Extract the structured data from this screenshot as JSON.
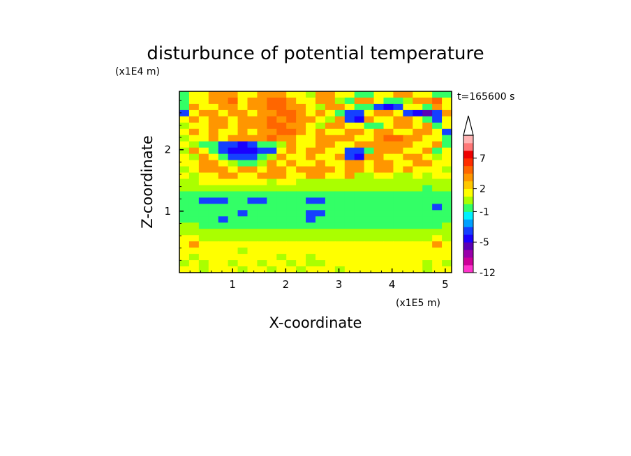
{
  "chart_data": {
    "type": "heatmap",
    "title": "disturbunce of potential temperature",
    "time_label": "t=165600 s",
    "xlabel": "X-coordinate",
    "ylabel": "Z-coordinate",
    "x_scale_label": "(x1E5 m)",
    "y_scale_label": "(x1E4 m)",
    "xlim": [
      0,
      5.12
    ],
    "ylim": [
      0,
      2.95
    ],
    "x_ticks": [
      1,
      2,
      3,
      4,
      5
    ],
    "y_ticks": [
      1,
      2
    ],
    "colorbar": {
      "levels": [
        -12,
        -10,
        -8,
        -6,
        -5,
        -4,
        -3,
        -2,
        -1,
        0,
        1,
        2,
        3,
        4,
        5,
        7,
        8,
        9,
        10
      ],
      "tick_labels": [
        "-12",
        "-5",
        "-1",
        "2",
        "7"
      ],
      "tick_values": [
        -12,
        -5,
        -1,
        2,
        7
      ],
      "colors": [
        "#ff33cc",
        "#cc0099",
        "#9900aa",
        "#5b00b5",
        "#1a00ff",
        "#1540ff",
        "#00a0ff",
        "#00f0ff",
        "#33ff66",
        "#aaff00",
        "#ffff00",
        "#ffc800",
        "#ff9600",
        "#ff6600",
        "#ff2d00",
        "#ee0000",
        "#ff7777",
        "#ffb3b3"
      ],
      "extend": "max"
    },
    "field_rows_top_to_bottom": [
      "CYYOOOYYOOOYYGOOYYCCYYOOYYCC",
      "CYYOORYOORROYYOOGCOOYCCGOORY",
      "COYYOOYOORROOYGOOYCCBDBYYCOY",
      "BYOOYOOYOORROYOYCBBYOOYBDMBO",
      "YOYOOYOOOROROOYGOBDOYYOOYCBY",
      "GYYOOYOOORROOYGOOYYCCYOOYOCY",
      "YOYOYYOYOORROYOYYOOYOOYYOOYB",
      "GYYOYOOOOROOYYOOOOYYORROOYYC",
      "YGCCBBDBCCGOYYOOYYOOOOOOYYOC",
      "GOYCBDDDBBYOYOOYYBBCOOOYYOCY",
      "YGOYCBBBCGOYYOYYOBDOOYYOOYGY",
      "YYOOYGCCGOYOYYOYYOOYOOYYOOYY",
      "GYOOOYOOYOOYOOOOYOOYOOYOYYYG",
      "YGYYOOYYOOOYYOOYYOGGYYGGYGYY",
      "GGYYYYYYYGYYGGGGGGGGGGGGGGGG",
      "GGGGGGGGGGGGGGGGGGGGGGGGGCGG",
      "CCCCCCCCCCCCCCCCCCCCCCCCCCCC",
      "CCBBBCCBBCCCCBBCCCCCCCCCCCCC",
      "CCCCCCCCCCCCCCCCCCCCCCCCCCBC",
      "CCCCCCBCCCCCCBBCCCCCCCCCCCCC",
      "CCCCBCCCCCCCCBCCCCCCCCCCCCCC",
      "GGCCCCCCCCCCCCCCCCCCCCCCCCCG",
      "GGGGGGGGGGGGGGGGGGGGGGGGGGGG",
      "YYGGGGGGGGGGGGGGGGGGGGGGGGYG",
      "YOYYYYYYYYYYYYYYYYYYYYYYYYOY",
      "YYYYYYGYYYYYYYYYYYYYYYYYYYYY",
      "YGYYYYYYYYGYYGYYYYYYYYYYYYYY",
      "GYGYYGYYGYYGYGGYYYYYYYYYYGYG",
      "YYGYYYGYYGYYGYYYGYYYYYYYYGYY"
    ],
    "field_key": {
      "M": -6,
      "D": -5,
      "B": -4,
      "C": -1,
      "G": 0.5,
      "Y": 1.5,
      "O": 3,
      "R": 4.5
    }
  }
}
